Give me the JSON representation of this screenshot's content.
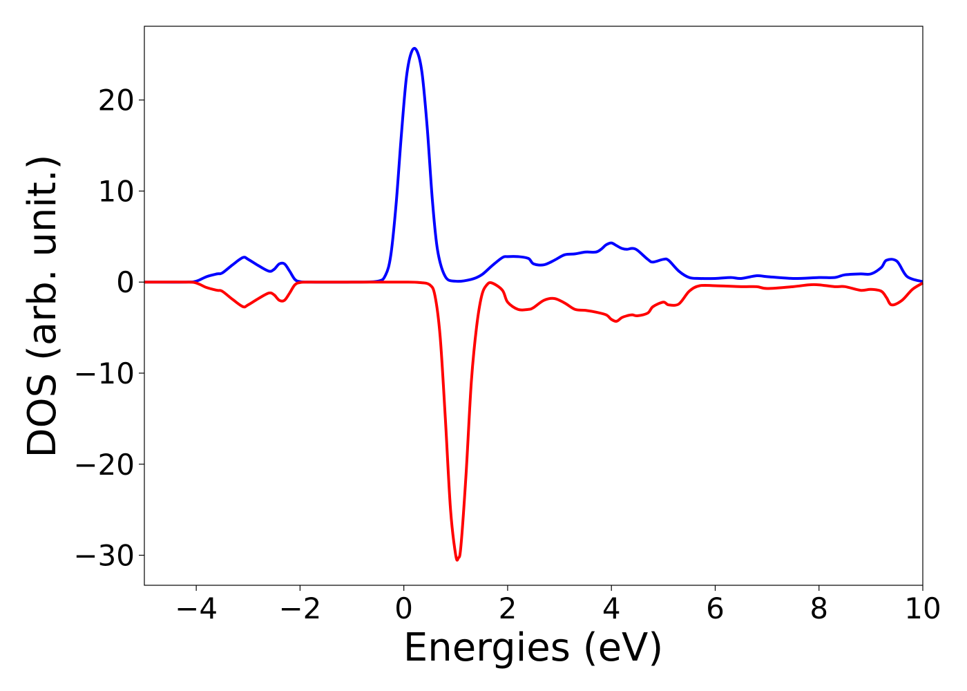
{
  "chart_data": {
    "type": "line",
    "title": "",
    "xlabel": "Energies (eV)",
    "ylabel": "DOS (arb. unit.)",
    "xlim": [
      -5,
      10
    ],
    "ylim": [
      -33.3,
      28.1
    ],
    "xticks": [
      -4,
      -2,
      0,
      2,
      4,
      6,
      8,
      10
    ],
    "yticks": [
      20,
      10,
      0,
      -10,
      -20,
      -30
    ],
    "xtick_labels": [
      "−4",
      "−2",
      "0",
      "2",
      "4",
      "6",
      "8",
      "10"
    ],
    "ytick_labels": [
      "20",
      "10",
      "0",
      "−10",
      "−20",
      "−30"
    ],
    "grid": false,
    "legend": "none",
    "series": [
      {
        "color": "#0000ff",
        "x": [
          -5,
          -4.2,
          -4.0,
          -3.8,
          -3.6,
          -3.5,
          -3.3,
          -3.1,
          -3.0,
          -2.8,
          -2.6,
          -2.5,
          -2.4,
          -2.3,
          -2.2,
          -2.1,
          -2.0,
          -1.8,
          -1.0,
          -0.5,
          -0.35,
          -0.25,
          -0.15,
          -0.05,
          0.05,
          0.15,
          0.25,
          0.35,
          0.45,
          0.55,
          0.65,
          0.8,
          1.0,
          1.3,
          1.5,
          1.7,
          1.9,
          2.0,
          2.2,
          2.4,
          2.5,
          2.7,
          2.9,
          3.1,
          3.3,
          3.5,
          3.7,
          3.8,
          3.9,
          4.0,
          4.1,
          4.2,
          4.3,
          4.4,
          4.5,
          4.7,
          4.8,
          5.0,
          5.1,
          5.3,
          5.5,
          5.7,
          6.0,
          6.3,
          6.5,
          6.8,
          7.0,
          7.5,
          8.0,
          8.3,
          8.5,
          8.8,
          9.0,
          9.2,
          9.3,
          9.5,
          9.7,
          10.0
        ],
        "y": [
          0,
          0,
          0.1,
          0.6,
          0.9,
          1.0,
          1.9,
          2.7,
          2.5,
          1.8,
          1.2,
          1.4,
          2.0,
          2.0,
          1.2,
          0.3,
          0.05,
          0,
          0,
          0.1,
          0.8,
          3.0,
          8.5,
          16.0,
          22.5,
          25.3,
          25.4,
          23.0,
          17.0,
          9.0,
          3.5,
          0.6,
          0.1,
          0.3,
          0.8,
          1.8,
          2.7,
          2.8,
          2.8,
          2.6,
          2.0,
          1.9,
          2.4,
          3.0,
          3.1,
          3.3,
          3.3,
          3.6,
          4.1,
          4.3,
          4.0,
          3.7,
          3.6,
          3.7,
          3.5,
          2.5,
          2.2,
          2.5,
          2.4,
          1.2,
          0.5,
          0.4,
          0.4,
          0.5,
          0.4,
          0.7,
          0.6,
          0.4,
          0.5,
          0.5,
          0.8,
          0.9,
          0.9,
          1.6,
          2.4,
          2.3,
          0.6,
          0.05
        ]
      },
      {
        "color": "#ff0000",
        "x": [
          -5,
          -4.2,
          -4.0,
          -3.8,
          -3.6,
          -3.5,
          -3.3,
          -3.1,
          -3.0,
          -2.8,
          -2.6,
          -2.5,
          -2.4,
          -2.3,
          -2.2,
          -2.1,
          -2.0,
          -1.8,
          -1.0,
          0.0,
          0.3,
          0.5,
          0.6,
          0.7,
          0.8,
          0.9,
          1.0,
          1.05,
          1.1,
          1.2,
          1.3,
          1.4,
          1.5,
          1.6,
          1.7,
          1.9,
          2.0,
          2.2,
          2.4,
          2.5,
          2.7,
          2.9,
          3.1,
          3.3,
          3.5,
          3.7,
          3.9,
          4.0,
          4.1,
          4.2,
          4.3,
          4.4,
          4.5,
          4.7,
          4.8,
          5.0,
          5.1,
          5.3,
          5.5,
          5.7,
          6.0,
          6.5,
          6.8,
          7.0,
          7.5,
          7.8,
          8.0,
          8.3,
          8.5,
          8.8,
          9.0,
          9.2,
          9.3,
          9.4,
          9.6,
          9.8,
          10.0
        ],
        "y": [
          0,
          0,
          -0.1,
          -0.6,
          -0.9,
          -1.0,
          -1.9,
          -2.7,
          -2.5,
          -1.8,
          -1.2,
          -1.4,
          -2.0,
          -2.0,
          -1.2,
          -0.3,
          -0.05,
          0,
          0,
          0,
          -0.05,
          -0.3,
          -1.5,
          -6.0,
          -15.0,
          -25.0,
          -30.0,
          -30.3,
          -29.0,
          -21.0,
          -11.0,
          -5.0,
          -1.5,
          -0.3,
          -0.1,
          -0.9,
          -2.2,
          -3.0,
          -3.0,
          -2.8,
          -2.0,
          -1.8,
          -2.3,
          -3.0,
          -3.1,
          -3.3,
          -3.6,
          -4.1,
          -4.3,
          -3.9,
          -3.7,
          -3.6,
          -3.7,
          -3.4,
          -2.7,
          -2.2,
          -2.5,
          -2.4,
          -1.0,
          -0.4,
          -0.4,
          -0.5,
          -0.5,
          -0.7,
          -0.5,
          -0.3,
          -0.3,
          -0.5,
          -0.5,
          -0.9,
          -0.8,
          -1.0,
          -1.7,
          -2.5,
          -2.0,
          -0.8,
          -0.1
        ]
      }
    ]
  }
}
